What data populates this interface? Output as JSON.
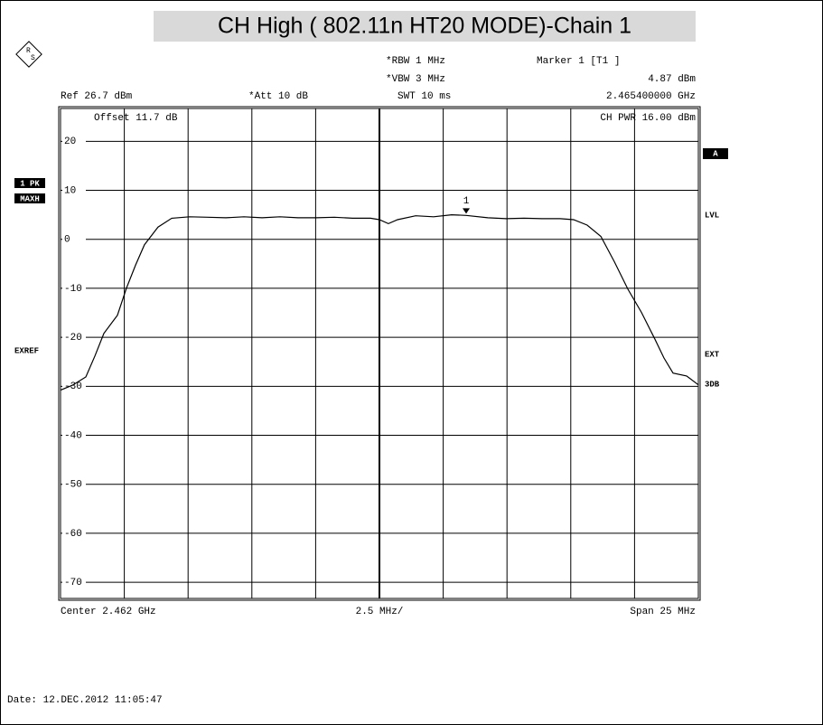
{
  "chart_data": {
    "type": "line",
    "title": "CH High ( 802.11n HT20 MODE)-Chain 1",
    "header": {
      "rbw": "*RBW 1 MHz",
      "vbw": "*VBW 3 MHz",
      "swt": "SWT 10 ms",
      "marker_title": "Marker 1 [T1 ]",
      "marker_level": "4.87 dBm",
      "marker_freq": "2.465400000 GHz",
      "ref": "Ref 26.7 dBm",
      "att": "*Att 10 dB",
      "offset": "Offset 11.7 dB",
      "ch_pwr": "CH PWR 16.00 dBm"
    },
    "side_left": [
      "1 PK",
      "MAXH",
      "EXREF"
    ],
    "side_right": [
      "A",
      "LVL",
      "EXT",
      "3DB"
    ],
    "footer": {
      "center": "Center 2.462 GHz",
      "div": "2.5 MHz/",
      "span": "Span 25 MHz",
      "date": "Date: 12.DEC.2012 11:05:47"
    },
    "xlim": [
      2.4495,
      2.4745
    ],
    "ylim": [
      -73.3,
      26.7
    ],
    "yticks": [
      20,
      10,
      0,
      -10,
      -20,
      -30,
      -40,
      -50,
      -60,
      -70
    ],
    "grid": true,
    "x": [
      2.4495,
      2.44996,
      2.45049,
      2.45085,
      2.4512,
      2.45173,
      2.45208,
      2.45244,
      2.45279,
      2.45332,
      2.45386,
      2.45456,
      2.45527,
      2.45598,
      2.45669,
      2.4574,
      2.4581,
      2.45881,
      2.45952,
      2.46023,
      2.46094,
      2.46165,
      2.462,
      2.46235,
      2.46271,
      2.46342,
      2.46412,
      2.46483,
      2.4654,
      2.46625,
      2.46696,
      2.46767,
      2.46837,
      2.46908,
      2.46961,
      2.47014,
      2.47068,
      2.47121,
      2.47174,
      2.47227,
      2.4728,
      2.47315,
      2.47351,
      2.47404,
      2.4745
    ],
    "series": [
      {
        "name": "1 PK",
        "color": "#000000",
        "values": [
          -30.8,
          -29.8,
          -28.1,
          -23.8,
          -19.2,
          -15.5,
          -10.0,
          -5.3,
          -1.1,
          2.5,
          4.3,
          4.6,
          4.5,
          4.4,
          4.6,
          4.4,
          4.6,
          4.4,
          4.4,
          4.5,
          4.3,
          4.3,
          4.0,
          3.2,
          4.0,
          4.8,
          4.6,
          5.0,
          4.87,
          4.4,
          4.2,
          4.3,
          4.2,
          4.2,
          4.0,
          2.9,
          0.6,
          -4.6,
          -10.2,
          -14.9,
          -20.4,
          -24.2,
          -27.3,
          -27.9,
          -29.7
        ]
      }
    ],
    "marker": {
      "label": "1",
      "x": 2.4654,
      "y": 4.87
    }
  }
}
